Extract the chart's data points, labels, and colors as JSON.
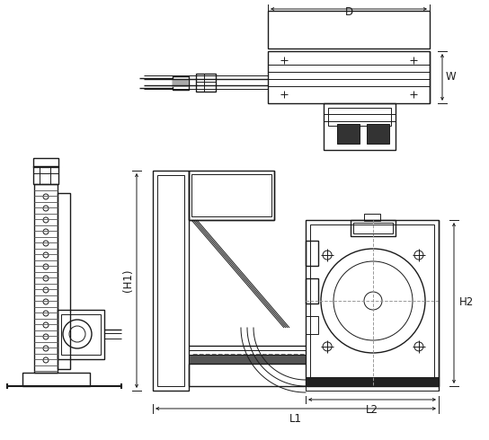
{
  "bg_color": "#ffffff",
  "line_color": "#1a1a1a",
  "dim_color": "#1a1a1a",
  "gray_color": "#666666",
  "figsize": [
    5.44,
    4.9
  ],
  "dpi": 100,
  "labels": {
    "D": "D",
    "W": "W",
    "H1": "(H1)",
    "H2": "H2",
    "L1": "L1",
    "L2": "L2"
  },
  "label_fontsize": 8.5
}
